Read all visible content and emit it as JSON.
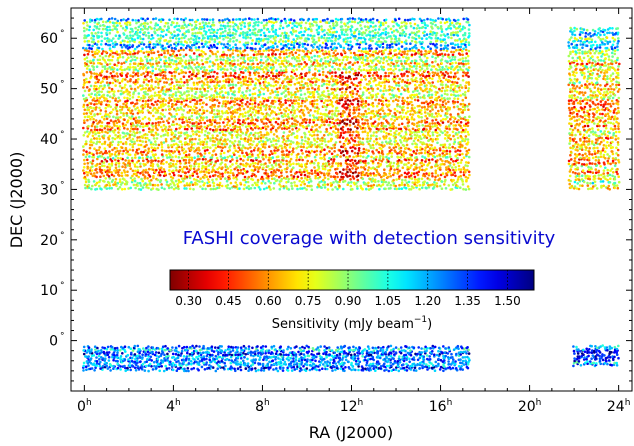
{
  "chart_data": {
    "type": "scatter",
    "title": "",
    "annotation": "FASHI coverage with detection sensitivity",
    "annotation_color": "#0a0ad0",
    "xlabel": "RA (J2000)",
    "ylabel": "DEC (J2000)",
    "x_unit": "hours",
    "y_unit": "degrees",
    "xlim": [
      -0.6,
      24.6
    ],
    "ylim": [
      -10,
      66
    ],
    "x_ticks": [
      0,
      4,
      8,
      12,
      16,
      20,
      24
    ],
    "x_tick_labels": [
      "0",
      "4",
      "8",
      "12",
      "16",
      "20",
      "24"
    ],
    "x_tick_suffix": "h",
    "y_ticks": [
      0,
      10,
      20,
      30,
      40,
      50,
      60
    ],
    "y_tick_labels": [
      "0",
      "10",
      "20",
      "30",
      "40",
      "50",
      "60"
    ],
    "y_tick_suffix": "°",
    "grid": false,
    "coverage_regions": [
      {
        "name": "north-main",
        "ra_range": [
          0,
          17.3
        ],
        "dec_range": [
          30,
          64
        ]
      },
      {
        "name": "north-right",
        "ra_range": [
          21.8,
          24
        ],
        "dec_range": [
          30,
          62
        ]
      },
      {
        "name": "south-main",
        "ra_range": [
          0,
          17.3
        ],
        "dec_range": [
          -6,
          -1
        ]
      },
      {
        "name": "south-right",
        "ra_range": [
          22,
          24
        ],
        "dec_range": [
          -5,
          -1
        ]
      }
    ],
    "colorbar": {
      "label": "Sensitivity (mJy beam",
      "label_sup": "−1",
      "label_end": ")",
      "range": [
        0.23,
        1.6
      ],
      "ticks": [
        0.3,
        0.45,
        0.6,
        0.75,
        0.9,
        1.05,
        1.2,
        1.35,
        1.5
      ],
      "tick_labels": [
        "0.30",
        "0.45",
        "0.60",
        "0.75",
        "0.90",
        "1.05",
        "1.20",
        "1.35",
        "1.50"
      ],
      "colormap": "jet"
    }
  }
}
